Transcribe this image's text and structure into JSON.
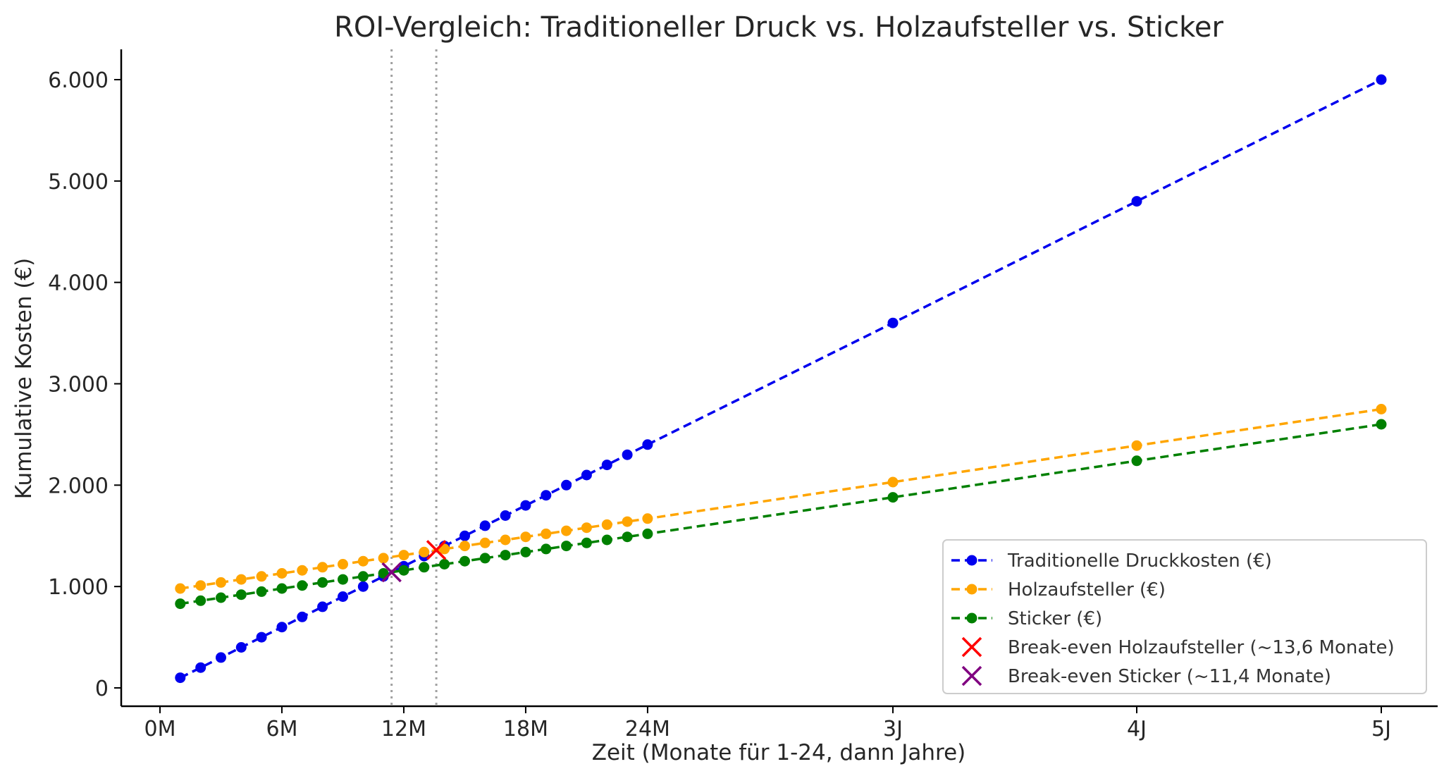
{
  "chart_data": {
    "type": "line",
    "title": "ROI-Vergleich: Traditioneller Druck vs. Holzaufsteller vs. Sticker",
    "xlabel": "Zeit (Monate für 1-24, dann Jahre)",
    "ylabel": "Kumulative Kosten (€)",
    "x_axis_note": "Months 1–24 plotted at month scale; then 3J, 4J, 5J points",
    "x_ticks": [
      "0M",
      "6M",
      "12M",
      "18M",
      "24M",
      "3J",
      "4J",
      "5J"
    ],
    "y_ticks": [
      "0",
      "1.000",
      "2.000",
      "3.000",
      "4.000",
      "5.000",
      "6.000"
    ],
    "ylim": [
      -180,
      6300
    ],
    "x": [
      "1M",
      "2M",
      "3M",
      "4M",
      "5M",
      "6M",
      "7M",
      "8M",
      "9M",
      "10M",
      "11M",
      "12M",
      "13M",
      "14M",
      "15M",
      "16M",
      "17M",
      "18M",
      "19M",
      "20M",
      "21M",
      "22M",
      "23M",
      "24M",
      "3J",
      "4J",
      "5J"
    ],
    "series": [
      {
        "name": "Traditionelle Druckkosten (€)",
        "color": "#0000ee",
        "values": [
          100,
          200,
          300,
          400,
          500,
          600,
          700,
          800,
          900,
          1000,
          1100,
          1200,
          1300,
          1400,
          1500,
          1600,
          1700,
          1800,
          1900,
          2000,
          2100,
          2200,
          2300,
          2400,
          3600,
          4800,
          6000
        ]
      },
      {
        "name": "Holzaufsteller (€)",
        "color": "#ffa500",
        "values": [
          980,
          1010,
          1040,
          1070,
          1100,
          1130,
          1160,
          1190,
          1220,
          1250,
          1280,
          1310,
          1340,
          1370,
          1400,
          1430,
          1460,
          1490,
          1520,
          1550,
          1580,
          1610,
          1640,
          1670,
          2030,
          2390,
          2750
        ]
      },
      {
        "name": "Sticker (€)",
        "color": "#008000",
        "values": [
          830,
          860,
          890,
          920,
          950,
          980,
          1010,
          1040,
          1070,
          1100,
          1130,
          1160,
          1190,
          1220,
          1250,
          1280,
          1310,
          1340,
          1370,
          1400,
          1430,
          1460,
          1490,
          1520,
          1880,
          2240,
          2600
        ]
      }
    ],
    "break_even": [
      {
        "name": "Break-even Holzaufsteller (~13,6 Monate)",
        "month": 13.6,
        "value": 1360,
        "color": "#ff0000"
      },
      {
        "name": "Break-even Sticker (~11,4 Monate)",
        "month": 11.4,
        "value": 1140,
        "color": "#800080"
      }
    ],
    "vertical_lines_at_months": [
      11.4,
      13.6
    ],
    "grid": false,
    "legend_position": "lower-right"
  }
}
